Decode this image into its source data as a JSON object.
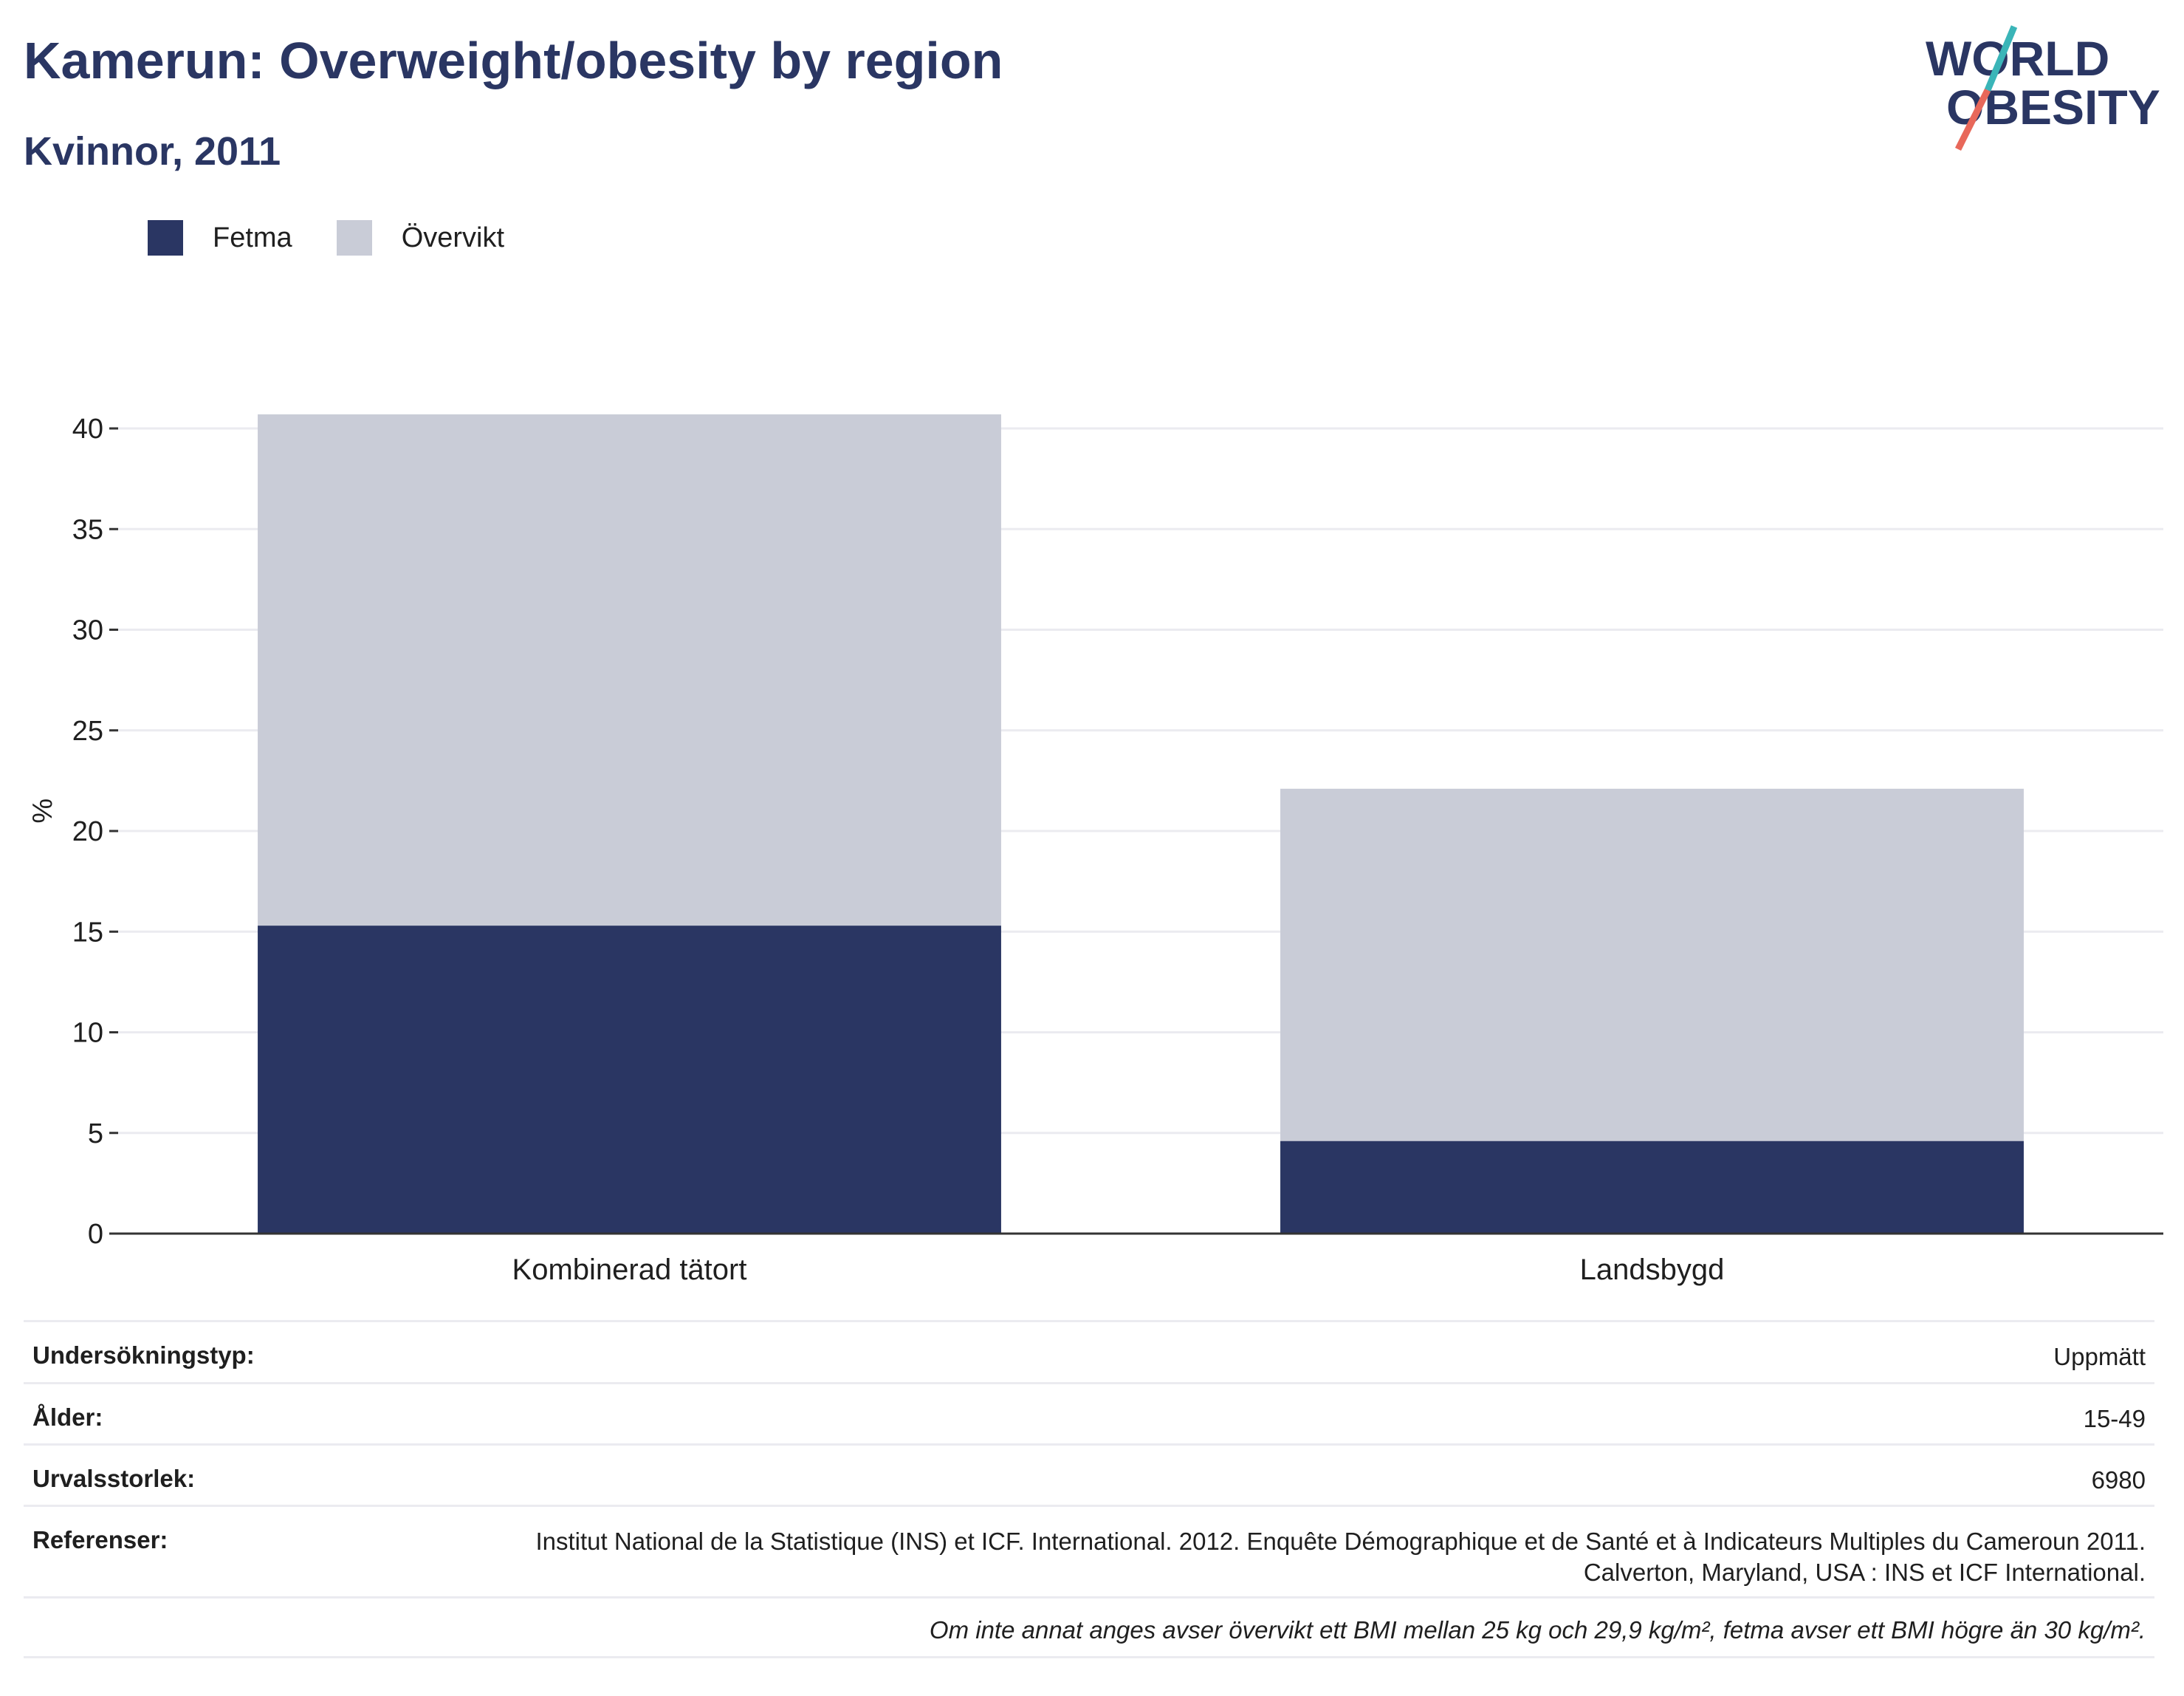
{
  "header": {
    "title": "Kamerun: Overweight/obesity by region",
    "subtitle": "Kvinnor, 2011"
  },
  "logo": {
    "line1": "WORLD",
    "line2": "OBESITY",
    "colors": {
      "text": "#2a3663",
      "slash_teal": "#3ab5b8",
      "slash_coral": "#e8685a"
    }
  },
  "legend": [
    {
      "label": "Fetma",
      "color": "#2a3663"
    },
    {
      "label": "Övervikt",
      "color": "#c9ccd7"
    }
  ],
  "chart_data": {
    "type": "bar",
    "stacked": true,
    "categories": [
      "Kombinerad tätort",
      "Landsbygd"
    ],
    "series": [
      {
        "name": "Fetma",
        "values": [
          15.3,
          4.6
        ],
        "color": "#2a3663"
      },
      {
        "name": "Övervikt",
        "values": [
          25.4,
          17.5
        ],
        "color": "#c9ccd7"
      }
    ],
    "ylabel": "%",
    "xlabel": "",
    "ylim": [
      0,
      42
    ],
    "yticks": [
      0,
      5,
      10,
      15,
      20,
      25,
      30,
      35,
      40
    ],
    "grid": true,
    "legend_position": "top-left"
  },
  "meta": [
    {
      "key": "Undersökningstyp:",
      "value": "Uppmätt"
    },
    {
      "key": "Ålder:",
      "value": "15-49"
    },
    {
      "key": "Urvalsstorlek:",
      "value": "6980"
    },
    {
      "key": "Referenser:",
      "value": "Institut National de la Statistique (INS) et ICF. International. 2012. Enquête Démographique et de Santé et à Indicateurs Multiples du Cameroun 2011. Calverton, Maryland, USA : INS et ICF International."
    }
  ],
  "footnote": "Om inte annat anges avser övervikt ett BMI mellan 25 kg och 29,9 kg/m², fetma avser ett BMI högre än 30 kg/m²."
}
